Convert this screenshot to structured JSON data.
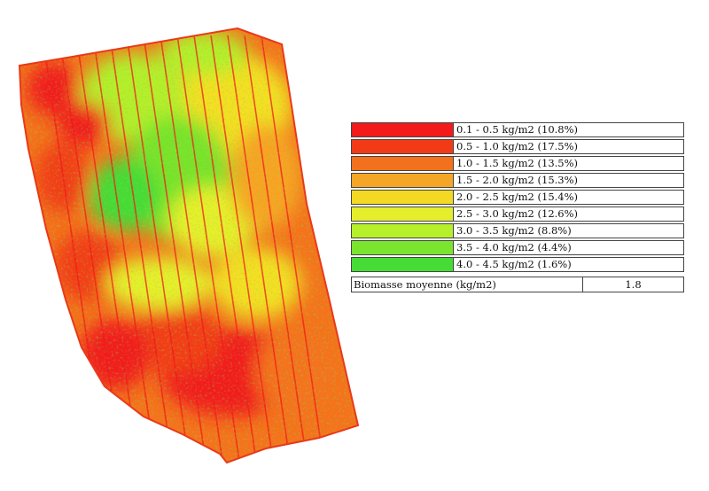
{
  "map": {
    "colors": {
      "red": "#f21a1a",
      "red_orange": "#f33c16",
      "orange": "#f5731b",
      "light_orange": "#f8a422",
      "yellow": "#f4e020",
      "yellow_green": "#e6f02a",
      "light_green": "#b4f02c",
      "green": "#78e42c",
      "bright_green": "#44dc36"
    }
  },
  "legend": {
    "items": [
      {
        "label": "0.1 - 0.5 kg/m2 (10.8%)",
        "color": "#f21a1a"
      },
      {
        "label": "0.5 - 1.0 kg/m2 (17.5%)",
        "color": "#f23a17"
      },
      {
        "label": "1.0 - 1.5 kg/m2 (13.5%)",
        "color": "#f3701c"
      },
      {
        "label": "1.5 - 2.0 kg/m2 (15.3%)",
        "color": "#f6a626"
      },
      {
        "label": "2.0 - 2.5 kg/m2 (15.4%)",
        "color": "#f3d923"
      },
      {
        "label": "2.5 - 3.0 kg/m2 (12.6%)",
        "color": "#e4ee2a"
      },
      {
        "label": "3.0 - 3.5 kg/m2 (8.8%)",
        "color": "#b6f02b"
      },
      {
        "label": "3.5 - 4.0 kg/m2 (4.4%)",
        "color": "#7ae42e"
      },
      {
        "label": "4.0 - 4.5 kg/m2 (1.6%)",
        "color": "#46dc36"
      }
    ],
    "mean_label": "Biomasse moyenne (kg/m2)",
    "mean_value": "1.8"
  }
}
